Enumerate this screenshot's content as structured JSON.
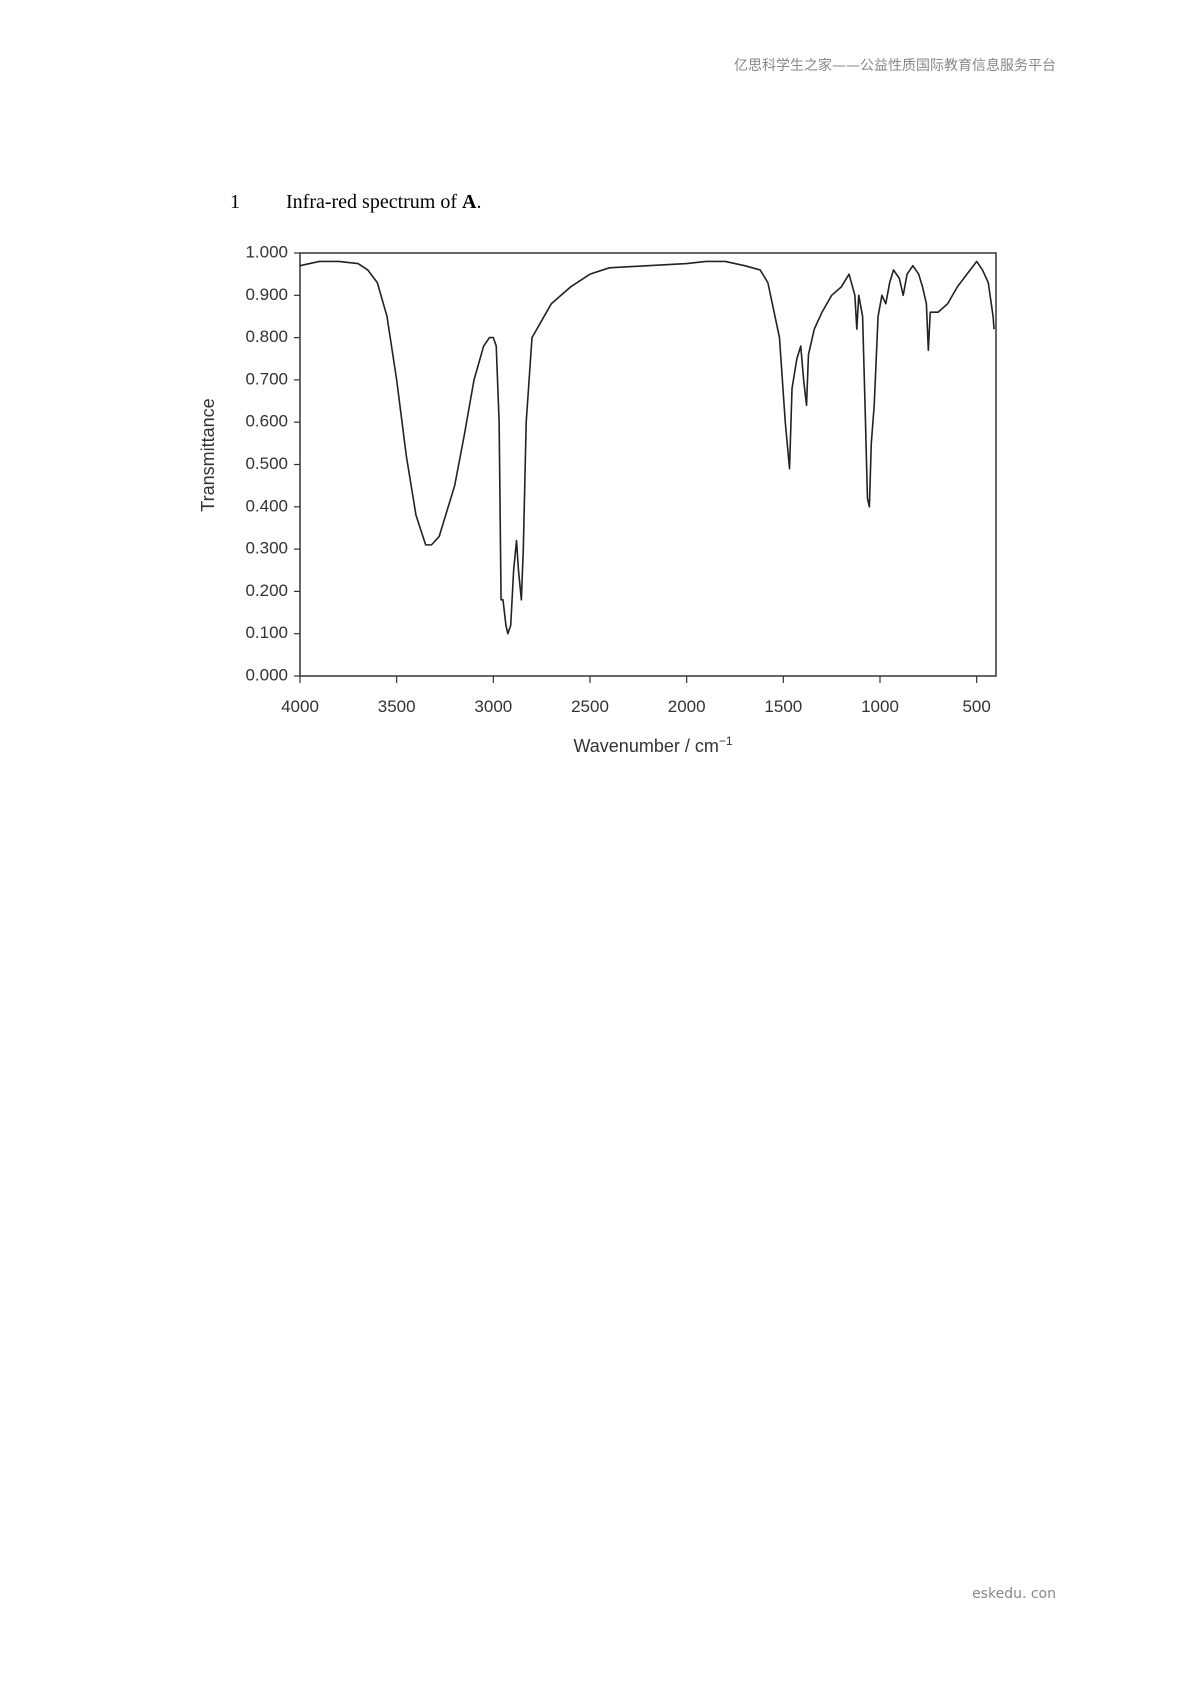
{
  "header": {
    "text": "亿思科学生之家——公益性质国际教育信息服务平台"
  },
  "caption": {
    "number": "1",
    "text": "Infra-red spectrum of ",
    "emphasis": "A",
    "end": "."
  },
  "chart_data": {
    "type": "line",
    "ylabel": "Transmittance",
    "xlabel": "Wavenumber / cm",
    "xlabel_sup": "−1",
    "xlim": [
      4000,
      400
    ],
    "xticks": [
      4000,
      3500,
      3000,
      2500,
      2000,
      1500,
      1000,
      500
    ],
    "ylim": [
      0,
      1
    ],
    "yticks": [
      {
        "value": 0,
        "label": "0.000"
      },
      {
        "value": 0.1,
        "label": "0.100"
      },
      {
        "value": 0.2,
        "label": "0.200"
      },
      {
        "value": 0.3,
        "label": "0.300"
      },
      {
        "value": 0.4,
        "label": "0.400"
      },
      {
        "value": 0.5,
        "label": "0.500"
      },
      {
        "value": 0.6,
        "label": "0.600"
      },
      {
        "value": 0.7,
        "label": "0.700"
      },
      {
        "value": 0.8,
        "label": "0.800"
      },
      {
        "value": 0.9,
        "label": "0.900"
      },
      {
        "value": 1,
        "label": "1.000"
      }
    ],
    "color": "#222222",
    "x": [
      4000,
      3900,
      3800,
      3700,
      3650,
      3600,
      3550,
      3500,
      3450,
      3400,
      3350,
      3320,
      3280,
      3200,
      3150,
      3100,
      3050,
      3020,
      3000,
      2985,
      2970,
      2960,
      2950,
      2935,
      2925,
      2910,
      2895,
      2880,
      2870,
      2855,
      2845,
      2830,
      2800,
      2750,
      2700,
      2600,
      2500,
      2400,
      2200,
      2000,
      1900,
      1800,
      1700,
      1620,
      1580,
      1520,
      1490,
      1468,
      1455,
      1430,
      1410,
      1395,
      1380,
      1370,
      1340,
      1300,
      1250,
      1200,
      1160,
      1130,
      1120,
      1110,
      1090,
      1075,
      1065,
      1055,
      1045,
      1030,
      1010,
      990,
      970,
      950,
      930,
      900,
      880,
      860,
      830,
      800,
      780,
      760,
      750,
      740,
      700,
      650,
      600,
      550,
      500,
      470,
      440,
      415,
      410
    ],
    "values": [
      0.97,
      0.98,
      0.98,
      0.975,
      0.96,
      0.93,
      0.85,
      0.7,
      0.52,
      0.38,
      0.31,
      0.31,
      0.33,
      0.45,
      0.57,
      0.7,
      0.78,
      0.8,
      0.8,
      0.78,
      0.6,
      0.18,
      0.18,
      0.12,
      0.1,
      0.12,
      0.25,
      0.32,
      0.25,
      0.18,
      0.3,
      0.6,
      0.8,
      0.84,
      0.88,
      0.92,
      0.95,
      0.965,
      0.97,
      0.975,
      0.98,
      0.98,
      0.97,
      0.96,
      0.93,
      0.8,
      0.6,
      0.49,
      0.68,
      0.75,
      0.78,
      0.7,
      0.64,
      0.76,
      0.82,
      0.86,
      0.9,
      0.92,
      0.95,
      0.9,
      0.82,
      0.9,
      0.85,
      0.6,
      0.42,
      0.4,
      0.55,
      0.64,
      0.85,
      0.9,
      0.88,
      0.93,
      0.96,
      0.94,
      0.9,
      0.95,
      0.97,
      0.95,
      0.92,
      0.88,
      0.77,
      0.86,
      0.86,
      0.88,
      0.92,
      0.95,
      0.98,
      0.96,
      0.93,
      0.85,
      0.82
    ]
  },
  "footer": {
    "text": "eskedu. con"
  }
}
